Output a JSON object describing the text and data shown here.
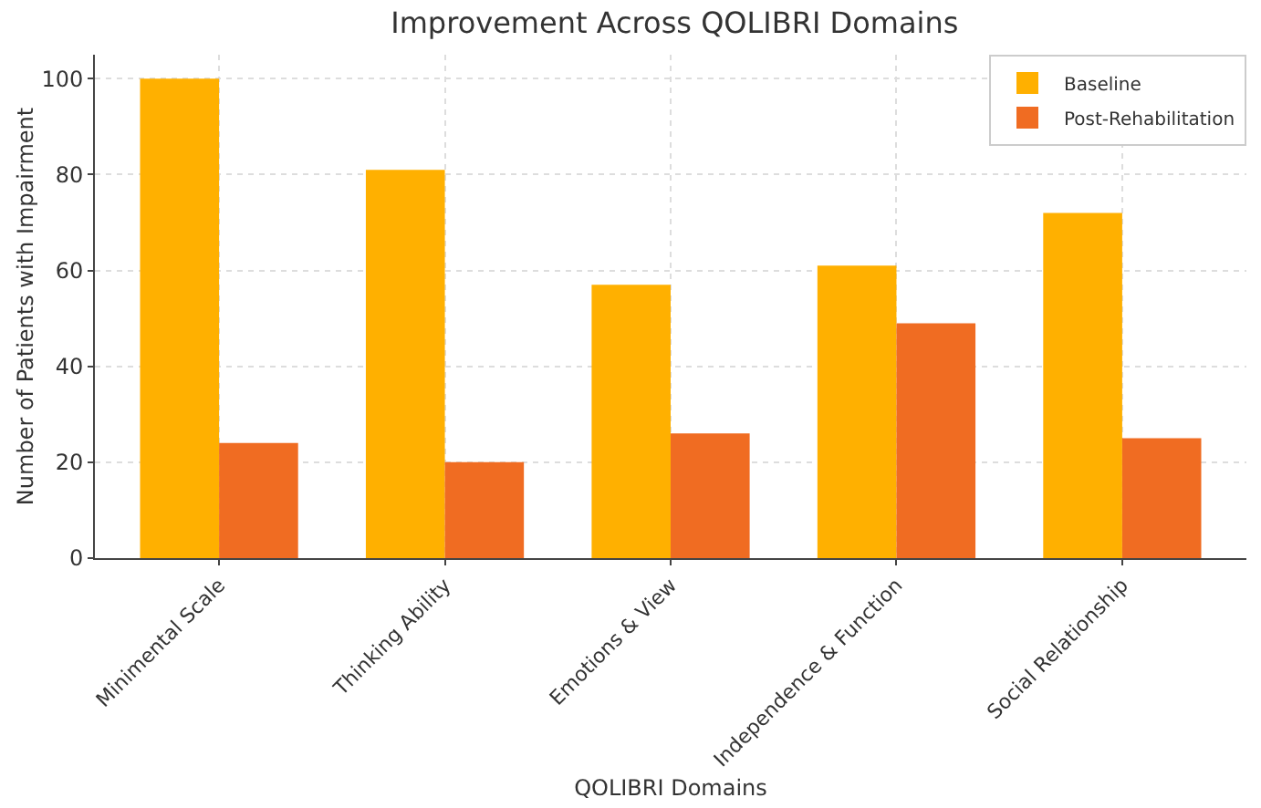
{
  "chart_data": {
    "type": "bar",
    "title": "Improvement Across QOLIBRI Domains",
    "xlabel": "QOLIBRI Domains",
    "ylabel": "Number of Patients with Impairment",
    "categories": [
      "Minimental Scale",
      "Thinking Ability",
      "Emotions & View",
      "Independence & Function",
      "Social Relationship"
    ],
    "series": [
      {
        "name": "Baseline",
        "color": "#ffb000",
        "values": [
          100,
          81,
          57,
          61,
          72
        ]
      },
      {
        "name": "Post-Rehabilitation",
        "color": "#f06c22",
        "values": [
          24,
          20,
          26,
          49,
          25
        ]
      }
    ],
    "ylim": [
      0,
      105
    ],
    "yticks": [
      0,
      20,
      40,
      60,
      80,
      100
    ],
    "grid": true,
    "legend": "top right"
  }
}
